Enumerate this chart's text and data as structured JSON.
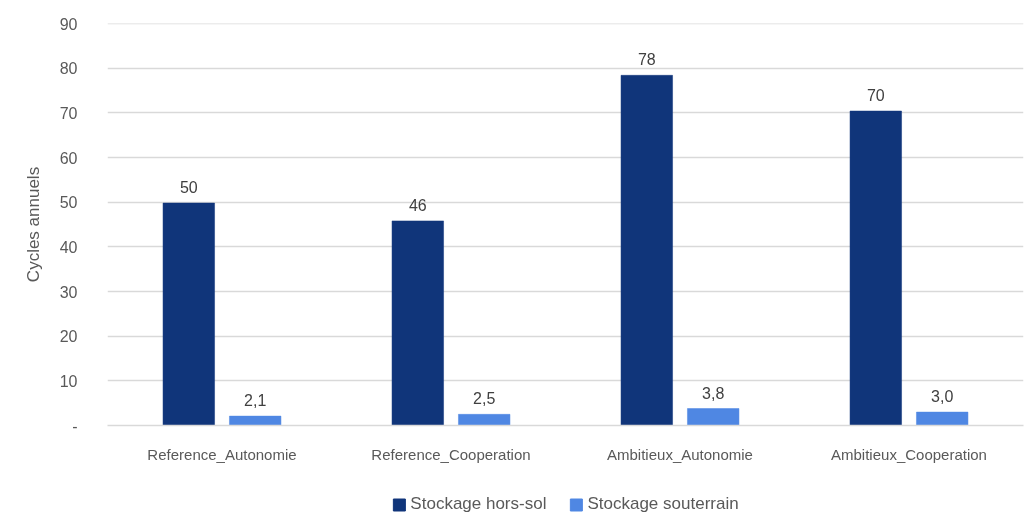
{
  "chart_data": {
    "type": "bar",
    "ylabel": "Cycles annuels",
    "categories": [
      "Reference_Autonomie",
      "Reference_Cooperation",
      "Ambitieux_Autonomie",
      "Ambitieux_Cooperation"
    ],
    "series": [
      {
        "name": "Stockage hors-sol",
        "color": "#10357a",
        "values": [
          49.8,
          45.8,
          78.4,
          70.4
        ],
        "value_labels": [
          "50",
          "46",
          "78",
          "70"
        ]
      },
      {
        "name": "Stockage souterrain",
        "color": "#4f87e3",
        "values": [
          2.1,
          2.5,
          3.8,
          3.0
        ],
        "value_labels": [
          "2,1",
          "2,5",
          "3,8",
          "3,0"
        ]
      }
    ],
    "ylim": [
      0,
      90
    ],
    "yticks": [
      {
        "value": 0,
        "label": "-"
      },
      10,
      20,
      30,
      40,
      50,
      60,
      70,
      80,
      90
    ],
    "grid": "y",
    "legend": "bottom"
  }
}
